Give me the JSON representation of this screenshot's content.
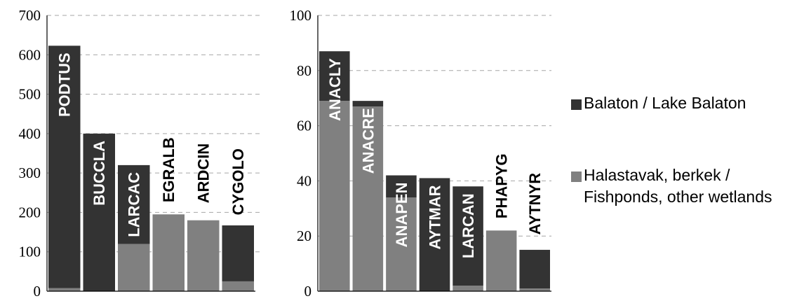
{
  "colors": {
    "balaton": "#333333",
    "fishponds": "#808080",
    "grid": "#a6a6a6",
    "axis": "#000000"
  },
  "legend": {
    "items": [
      {
        "key": "balaton",
        "lines": [
          "Balaton / Lake Balaton"
        ]
      },
      {
        "key": "fishponds",
        "lines": [
          "Halastavak, berkek /",
          "Fishponds, other wetlands"
        ]
      }
    ]
  },
  "chart_data": [
    {
      "type": "bar",
      "stacked": true,
      "categories": [
        "PODTUS",
        "BUCCLA",
        "LARCAC",
        "EGRALB",
        "ARDCIN",
        "CYGOLO"
      ],
      "series": [
        {
          "key": "fishponds",
          "name": "Halastavak, berkek / Fishponds, other wetlands",
          "values": [
            8,
            0,
            120,
            195,
            180,
            25
          ]
        },
        {
          "key": "balaton",
          "name": "Balaton / Lake Balaton",
          "values": [
            615,
            400,
            200,
            0,
            0,
            142
          ]
        }
      ],
      "ylim": [
        0,
        700
      ],
      "yticks": [
        "0",
        "100",
        "200",
        "300",
        "400",
        "500",
        "600",
        "700"
      ],
      "grid": true,
      "title": "",
      "xlabel": "",
      "ylabel": ""
    },
    {
      "type": "bar",
      "stacked": true,
      "categories": [
        "ANACLY",
        "ANACRE",
        "ANAPEN",
        "AYTMAR",
        "LARCAN",
        "PHAPYG",
        "AYTNYR"
      ],
      "series": [
        {
          "key": "fishponds",
          "name": "Halastavak, berkek / Fishponds, other wetlands",
          "values": [
            69,
            67,
            34,
            0,
            2,
            22,
            1
          ]
        },
        {
          "key": "balaton",
          "name": "Balaton / Lake Balaton",
          "values": [
            18,
            2,
            8,
            41,
            36,
            0,
            14
          ]
        }
      ],
      "ylim": [
        0,
        100
      ],
      "yticks": [
        "0",
        "20",
        "40",
        "60",
        "80",
        "100"
      ],
      "grid": true,
      "title": "",
      "xlabel": "",
      "ylabel": ""
    }
  ]
}
